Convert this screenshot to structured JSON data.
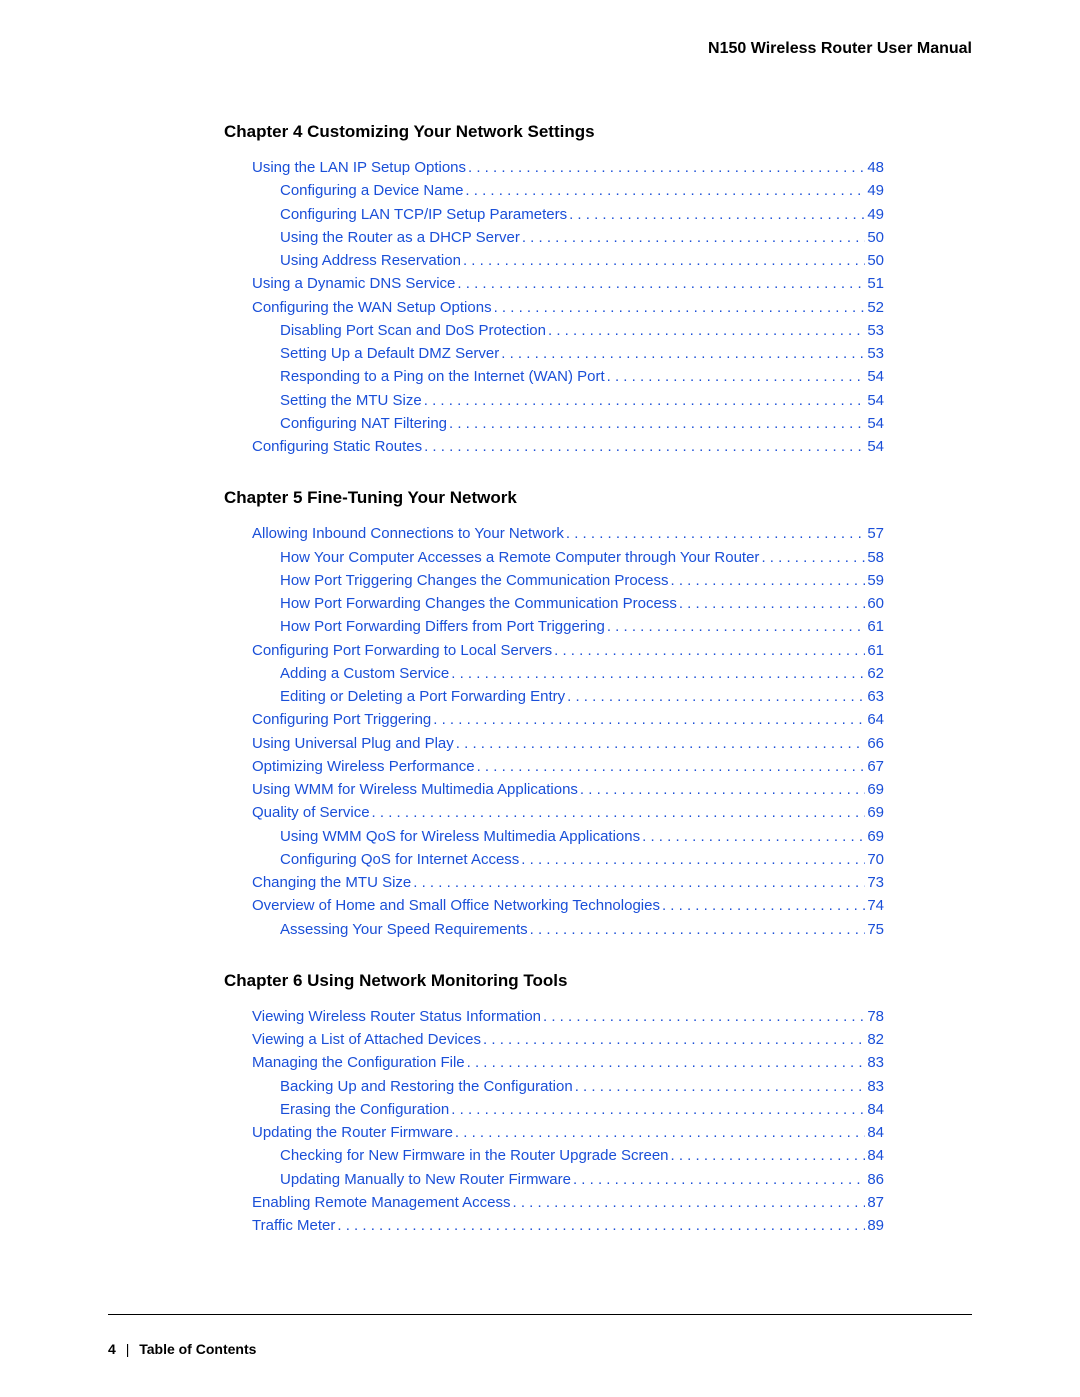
{
  "docTitle": "N150 Wireless Router User Manual",
  "linkColor": "#1a4fd8",
  "font": {
    "family": "Arial",
    "headingSize": 17,
    "bodySize": 15
  },
  "chapters": [
    {
      "id": "ch4",
      "title": "Chapter 4    Customizing Your Network Settings",
      "entries": [
        {
          "indent": 0,
          "label": "Using the LAN IP Setup Options",
          "page": "48"
        },
        {
          "indent": 1,
          "label": "Configuring a Device Name",
          "page": "49"
        },
        {
          "indent": 1,
          "label": "Configuring LAN TCP/IP Setup Parameters",
          "page": "49"
        },
        {
          "indent": 1,
          "label": "Using the Router as a DHCP Server",
          "page": "50"
        },
        {
          "indent": 1,
          "label": "Using Address Reservation",
          "page": "50"
        },
        {
          "indent": 0,
          "label": "Using a Dynamic DNS Service",
          "page": "51"
        },
        {
          "indent": 0,
          "label": "Configuring the WAN Setup Options",
          "page": "52"
        },
        {
          "indent": 1,
          "label": "Disabling Port Scan and DoS Protection",
          "page": "53"
        },
        {
          "indent": 1,
          "label": "Setting Up a Default DMZ Server",
          "page": "53"
        },
        {
          "indent": 1,
          "label": "Responding to a Ping on the Internet (WAN) Port",
          "page": "54"
        },
        {
          "indent": 1,
          "label": "Setting the MTU Size",
          "page": "54"
        },
        {
          "indent": 1,
          "label": "Configuring NAT Filtering",
          "page": "54"
        },
        {
          "indent": 0,
          "label": "Configuring Static Routes",
          "page": "54"
        }
      ]
    },
    {
      "id": "ch5",
      "title": "Chapter 5    Fine-Tuning Your Network",
      "entries": [
        {
          "indent": 0,
          "label": "Allowing Inbound Connections to Your Network",
          "page": "57"
        },
        {
          "indent": 1,
          "label": "How Your Computer Accesses a Remote Computer through Your Router",
          "page": "58"
        },
        {
          "indent": 1,
          "label": "How Port Triggering Changes the Communication Process",
          "page": "59"
        },
        {
          "indent": 1,
          "label": "How Port Forwarding Changes the Communication Process",
          "page": "60"
        },
        {
          "indent": 1,
          "label": "How Port Forwarding Differs from Port Triggering",
          "page": "61"
        },
        {
          "indent": 0,
          "label": "Configuring Port Forwarding to Local Servers",
          "page": "61"
        },
        {
          "indent": 1,
          "label": "Adding a Custom Service",
          "page": "62"
        },
        {
          "indent": 1,
          "label": "Editing or Deleting a Port Forwarding Entry",
          "page": "63"
        },
        {
          "indent": 0,
          "label": "Configuring Port Triggering",
          "page": "64"
        },
        {
          "indent": 0,
          "label": "Using Universal Plug and Play",
          "page": "66"
        },
        {
          "indent": 0,
          "label": "Optimizing Wireless Performance",
          "page": "67"
        },
        {
          "indent": 0,
          "label": "Using WMM for Wireless Multimedia Applications",
          "page": "69"
        },
        {
          "indent": 0,
          "label": "Quality of Service",
          "page": "69"
        },
        {
          "indent": 1,
          "label": "Using WMM QoS for Wireless Multimedia Applications",
          "page": "69"
        },
        {
          "indent": 1,
          "label": "Configuring QoS for Internet Access",
          "page": "70"
        },
        {
          "indent": 0,
          "label": "Changing the MTU Size",
          "page": "73"
        },
        {
          "indent": 0,
          "label": "Overview of Home and Small Office Networking Technologies",
          "page": "74"
        },
        {
          "indent": 1,
          "label": "Assessing Your Speed Requirements",
          "page": "75"
        }
      ]
    },
    {
      "id": "ch6",
      "title": "Chapter 6    Using Network Monitoring Tools",
      "entries": [
        {
          "indent": 0,
          "label": "Viewing Wireless Router Status Information",
          "page": "78"
        },
        {
          "indent": 0,
          "label": "Viewing a List of Attached Devices",
          "page": "82"
        },
        {
          "indent": 0,
          "label": "Managing the Configuration File",
          "page": "83"
        },
        {
          "indent": 1,
          "label": "Backing Up and Restoring the Configuration",
          "page": "83"
        },
        {
          "indent": 1,
          "label": "Erasing the Configuration",
          "page": "84"
        },
        {
          "indent": 0,
          "label": "Updating the Router Firmware",
          "page": "84"
        },
        {
          "indent": 1,
          "label": "Checking for New Firmware in the Router Upgrade Screen",
          "page": "84"
        },
        {
          "indent": 1,
          "label": "Updating Manually to New Router Firmware",
          "page": "86"
        },
        {
          "indent": 0,
          "label": "Enabling Remote Management Access",
          "page": "87"
        },
        {
          "indent": 0,
          "label": "Traffic Meter",
          "page": "89"
        }
      ]
    }
  ],
  "footer": {
    "pageNumber": "4",
    "separator": "|",
    "section": "Table of Contents"
  }
}
